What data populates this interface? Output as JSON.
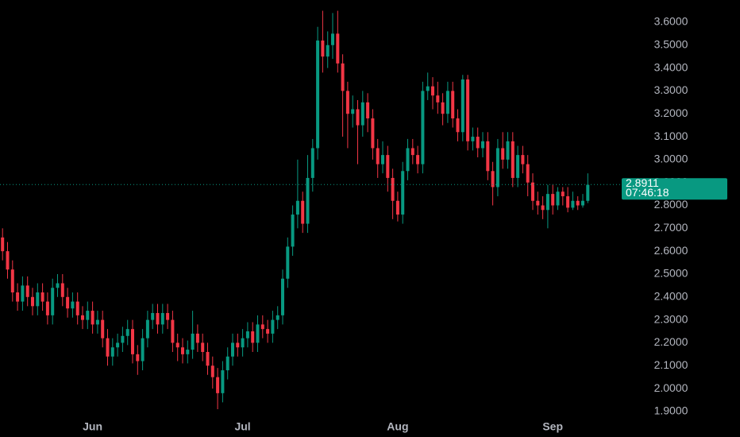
{
  "chart_data": {
    "type": "candlestick",
    "up_color": "#089981",
    "down_color": "#f23645",
    "categories": [
      null,
      null,
      null,
      null,
      null,
      null,
      null,
      null,
      null,
      null,
      null,
      null,
      null,
      null,
      null,
      null,
      null,
      null,
      "Jun",
      null,
      null,
      null,
      null,
      null,
      null,
      null,
      null,
      null,
      null,
      null,
      null,
      null,
      null,
      null,
      null,
      null,
      null,
      null,
      null,
      null,
      null,
      null,
      null,
      null,
      null,
      null,
      null,
      null,
      "Jul",
      null,
      null,
      null,
      null,
      null,
      null,
      null,
      null,
      null,
      null,
      null,
      null,
      null,
      null,
      null,
      null,
      null,
      null,
      null,
      null,
      null,
      null,
      null,
      null,
      null,
      null,
      null,
      null,
      null,
      null,
      "Aug",
      null,
      null,
      null,
      null,
      null,
      null,
      null,
      null,
      null,
      null,
      null,
      null,
      null,
      null,
      null,
      null,
      null,
      null,
      null,
      null,
      null,
      null,
      null,
      null,
      null,
      null,
      null,
      null,
      null,
      null,
      "Sep",
      null,
      null,
      null,
      null,
      null,
      null,
      null
    ],
    "open": [
      2.66,
      2.6,
      2.52,
      2.42,
      2.38,
      2.45,
      2.4,
      2.36,
      2.42,
      2.38,
      2.32,
      2.44,
      2.46,
      2.4,
      2.35,
      2.38,
      2.32,
      2.3,
      2.34,
      2.28,
      2.3,
      2.22,
      2.14,
      2.18,
      2.2,
      2.23,
      2.26,
      2.15,
      2.12,
      2.22,
      2.3,
      2.33,
      2.28,
      2.33,
      2.3,
      2.2,
      2.18,
      2.15,
      2.17,
      2.24,
      2.2,
      2.16,
      2.1,
      2.05,
      1.98,
      2.08,
      2.14,
      2.2,
      2.18,
      2.22,
      2.25,
      2.2,
      2.28,
      2.26,
      2.24,
      2.3,
      2.32,
      2.48,
      2.62,
      2.76,
      2.82,
      2.72,
      2.92,
      3.05,
      3.52,
      3.45,
      3.5,
      3.55,
      3.42,
      3.3,
      3.2,
      3.22,
      3.15,
      3.25,
      3.18,
      3.05,
      2.98,
      3.02,
      2.92,
      2.82,
      2.76,
      2.95,
      3.05,
      3.02,
      2.98,
      3.3,
      3.32,
      3.28,
      3.25,
      3.2,
      3.3,
      3.18,
      3.12,
      3.35,
      3.08,
      3.1,
      3.05,
      3.08,
      2.95,
      2.88,
      3.05,
      3.0,
      3.08,
      2.92,
      3.02,
      2.98,
      2.9,
      2.82,
      2.8,
      2.78,
      2.85,
      2.8,
      2.86,
      2.84,
      2.79,
      2.82,
      2.8,
      2.82
    ],
    "high": [
      2.7,
      2.64,
      2.56,
      2.46,
      2.49,
      2.49,
      2.44,
      2.46,
      2.46,
      2.42,
      2.48,
      2.5,
      2.5,
      2.44,
      2.42,
      2.42,
      2.36,
      2.38,
      2.38,
      2.34,
      2.34,
      2.26,
      2.22,
      2.24,
      2.27,
      2.3,
      2.3,
      2.19,
      2.26,
      2.34,
      2.37,
      2.37,
      2.37,
      2.37,
      2.34,
      2.24,
      2.22,
      2.21,
      2.34,
      2.28,
      2.24,
      2.2,
      2.14,
      2.09,
      2.12,
      2.18,
      2.24,
      2.24,
      2.26,
      2.29,
      2.29,
      2.32,
      2.32,
      2.3,
      2.34,
      2.36,
      2.52,
      2.66,
      2.8,
      3.0,
      2.86,
      3.02,
      3.09,
      3.58,
      3.65,
      3.56,
      3.64,
      3.65,
      3.46,
      3.34,
      3.28,
      3.26,
      3.3,
      3.29,
      3.22,
      3.09,
      3.08,
      3.06,
      2.96,
      2.86,
      2.99,
      3.09,
      3.09,
      3.06,
      3.34,
      3.38,
      3.36,
      3.34,
      3.29,
      3.34,
      3.34,
      3.22,
      3.37,
      3.37,
      3.14,
      3.14,
      3.12,
      3.12,
      2.99,
      3.09,
      3.12,
      3.12,
      3.12,
      3.06,
      3.06,
      3.02,
      2.94,
      2.86,
      2.84,
      2.89,
      2.89,
      2.88,
      2.88,
      2.88,
      2.86,
      2.84,
      2.85,
      2.94
    ],
    "low": [
      2.56,
      2.48,
      2.38,
      2.34,
      2.34,
      2.36,
      2.32,
      2.32,
      2.34,
      2.28,
      2.28,
      2.4,
      2.36,
      2.31,
      2.31,
      2.28,
      2.26,
      2.26,
      2.24,
      2.24,
      2.18,
      2.1,
      2.1,
      2.14,
      2.16,
      2.19,
      2.11,
      2.06,
      2.08,
      2.18,
      2.26,
      2.24,
      2.24,
      2.26,
      2.16,
      2.12,
      2.11,
      2.11,
      2.13,
      2.16,
      2.12,
      2.06,
      2.0,
      1.91,
      1.94,
      2.04,
      2.1,
      2.14,
      2.14,
      2.18,
      2.16,
      2.16,
      2.22,
      2.2,
      2.2,
      2.26,
      2.28,
      2.44,
      2.58,
      2.7,
      2.68,
      2.68,
      2.86,
      3.0,
      3.38,
      3.4,
      3.44,
      3.38,
      3.1,
      3.05,
      3.14,
      2.98,
      3.1,
      3.12,
      3.0,
      2.92,
      2.94,
      2.86,
      2.74,
      2.73,
      2.72,
      2.91,
      2.98,
      2.94,
      2.94,
      3.26,
      3.22,
      3.2,
      3.15,
      3.16,
      3.14,
      3.08,
      3.08,
      3.04,
      3.04,
      3.01,
      3.01,
      2.91,
      2.8,
      2.84,
      2.96,
      2.96,
      2.88,
      2.88,
      2.94,
      2.84,
      2.78,
      2.76,
      2.74,
      2.7,
      2.76,
      2.78,
      2.8,
      2.77,
      2.78,
      2.78,
      2.79,
      2.81
    ],
    "close": [
      2.6,
      2.52,
      2.42,
      2.38,
      2.45,
      2.4,
      2.36,
      2.42,
      2.38,
      2.32,
      2.44,
      2.46,
      2.4,
      2.35,
      2.38,
      2.32,
      2.3,
      2.34,
      2.28,
      2.3,
      2.22,
      2.14,
      2.18,
      2.2,
      2.23,
      2.26,
      2.15,
      2.12,
      2.22,
      2.3,
      2.33,
      2.28,
      2.33,
      2.3,
      2.2,
      2.18,
      2.15,
      2.17,
      2.24,
      2.2,
      2.16,
      2.1,
      2.05,
      1.98,
      2.08,
      2.14,
      2.2,
      2.18,
      2.22,
      2.25,
      2.2,
      2.28,
      2.26,
      2.24,
      2.3,
      2.32,
      2.48,
      2.62,
      2.76,
      2.82,
      2.72,
      2.92,
      3.05,
      3.52,
      3.45,
      3.5,
      3.55,
      3.42,
      3.3,
      3.2,
      3.22,
      3.15,
      3.25,
      3.18,
      3.05,
      2.98,
      3.02,
      2.92,
      2.82,
      2.76,
      2.95,
      3.05,
      3.02,
      2.98,
      3.3,
      3.32,
      3.28,
      3.25,
      3.2,
      3.3,
      3.18,
      3.12,
      3.35,
      3.08,
      3.1,
      3.05,
      3.08,
      2.95,
      2.88,
      3.05,
      3.0,
      3.08,
      2.92,
      3.02,
      2.98,
      2.9,
      2.82,
      2.8,
      2.78,
      2.85,
      2.8,
      2.86,
      2.84,
      2.79,
      2.82,
      2.8,
      2.82,
      2.89
    ],
    "ylim": [
      1.858,
      3.697
    ],
    "yticks": [
      {
        "value": 1.9,
        "label": "1.9000"
      },
      {
        "value": 2.0,
        "label": "2.0000"
      },
      {
        "value": 2.1,
        "label": "2.1000"
      },
      {
        "value": 2.2,
        "label": "2.2000"
      },
      {
        "value": 2.3,
        "label": "2.3000"
      },
      {
        "value": 2.4,
        "label": "2.4000"
      },
      {
        "value": 2.5,
        "label": "2.5000"
      },
      {
        "value": 2.6,
        "label": "2.6000"
      },
      {
        "value": 2.7,
        "label": "2.7000"
      },
      {
        "value": 2.8,
        "label": "2.8000"
      },
      {
        "value": 2.9,
        "label": "2.9000"
      },
      {
        "value": 3.0,
        "label": "3.0000"
      },
      {
        "value": 3.1,
        "label": "3.1000"
      },
      {
        "value": 3.2,
        "label": "3.2000"
      },
      {
        "value": 3.3,
        "label": "3.3000"
      },
      {
        "value": 3.4,
        "label": "3.4000"
      },
      {
        "value": 3.5,
        "label": "3.5000"
      },
      {
        "value": 3.6,
        "label": "3.6000"
      }
    ],
    "last_price": 2.8911,
    "countdown": "07:46:18"
  }
}
